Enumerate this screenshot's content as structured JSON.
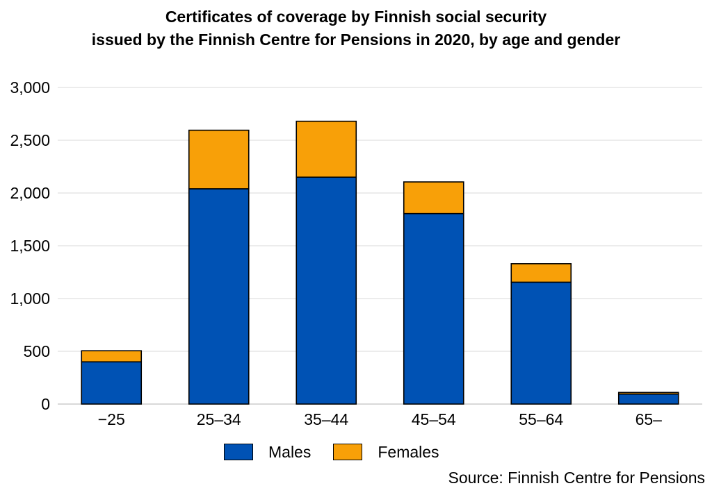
{
  "chart_data": {
    "type": "bar",
    "stacked": true,
    "title_lines": [
      "Certificates of coverage by Finnish social security",
      "issued by the Finnish Centre for Pensions in 2020, by age and gender"
    ],
    "categories": [
      "−25",
      "25–34",
      "35–44",
      "45–54",
      "55–64",
      "65–"
    ],
    "series": [
      {
        "name": "Males",
        "color": "#0052B4",
        "values": [
          400,
          2040,
          2150,
          1805,
          1155,
          95
        ]
      },
      {
        "name": "Females",
        "color": "#F8A008",
        "values": [
          105,
          555,
          530,
          300,
          175,
          15
        ]
      }
    ],
    "yticks": [
      "0",
      "500",
      "1,000",
      "1,500",
      "2,000",
      "2,500",
      "3,000"
    ],
    "ylim": [
      0,
      3000
    ],
    "grid": true,
    "legend_position": "bottom",
    "source": "Source: Finnish Centre for Pensions"
  }
}
